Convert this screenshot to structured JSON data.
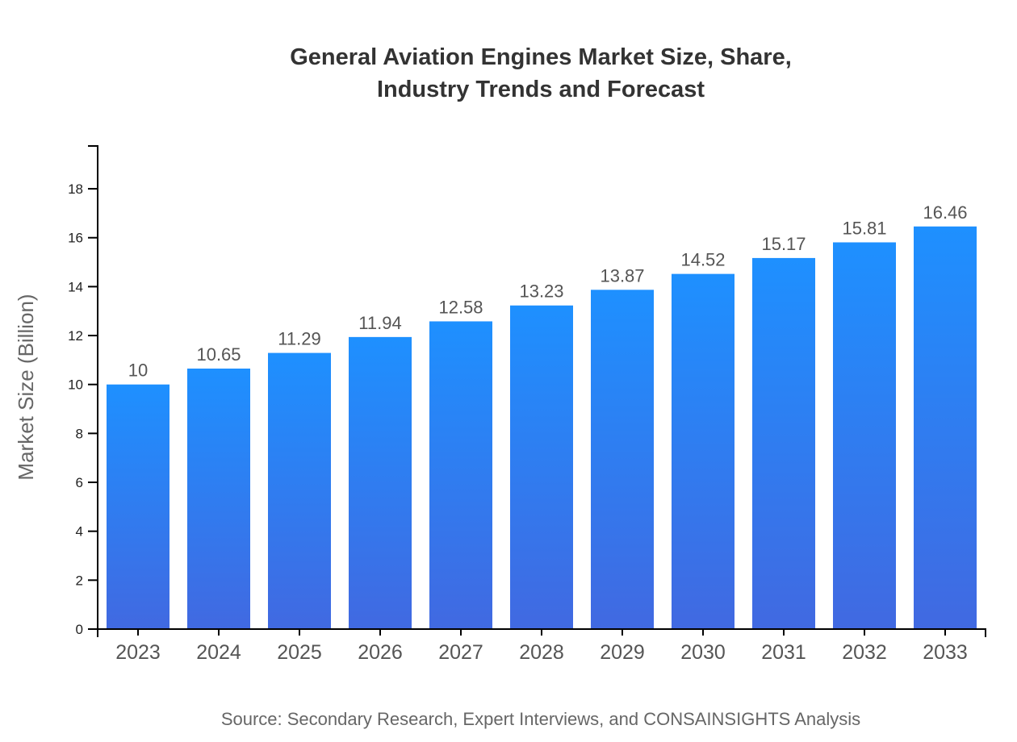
{
  "chart_data": {
    "type": "bar",
    "title": [
      "General Aviation Engines Market Size, Share,",
      "Industry Trends and Forecast"
    ],
    "xlabel": "",
    "ylabel": "Market Size (Billion)",
    "categories": [
      "2023",
      "2024",
      "2025",
      "2026",
      "2027",
      "2028",
      "2029",
      "2030",
      "2031",
      "2032",
      "2033"
    ],
    "values": [
      10,
      10.65,
      11.29,
      11.94,
      12.58,
      13.23,
      13.87,
      14.52,
      15.17,
      15.81,
      16.46
    ],
    "data_labels": [
      "10",
      "10.65",
      "11.29",
      "11.94",
      "12.58",
      "13.23",
      "13.87",
      "14.52",
      "15.17",
      "15.81",
      "16.46"
    ],
    "ylim": [
      0,
      19.75
    ],
    "yticks": [
      0,
      2,
      4,
      6,
      8,
      10,
      12,
      14,
      16,
      18
    ],
    "grid": false,
    "bar_gradient": {
      "top": "#1e90ff",
      "bottom": "#4169e1"
    },
    "source": "Source: Secondary Research, Expert Interviews, and CONSAINSIGHTS Analysis"
  }
}
